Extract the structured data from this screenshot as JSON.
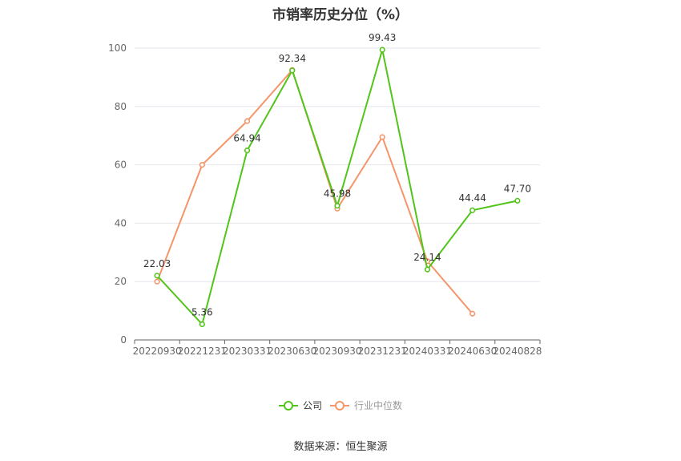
{
  "title": "市销率历史分位（%）",
  "source": "数据来源：恒生聚源",
  "colors": {
    "company": "#52c41a",
    "industry": "#f4956a",
    "grid": "#e6e6ee",
    "axis": "#666666"
  },
  "chart_data": {
    "type": "line",
    "title": "市销率历史分位（%）",
    "categories": [
      "20220930",
      "20221231",
      "20230331",
      "20230630",
      "20230930",
      "20231231",
      "20240331",
      "20240630",
      "20240828"
    ],
    "ylim": [
      0,
      100
    ],
    "yticks": [
      0,
      20,
      40,
      60,
      80,
      100
    ],
    "grid": true,
    "legend_position": "bottom",
    "series": [
      {
        "name": "公司",
        "values": [
          22.03,
          5.36,
          64.94,
          92.34,
          45.98,
          99.43,
          24.14,
          44.44,
          47.7
        ],
        "labels": [
          "22.03",
          "5.36",
          "64.94",
          "92.34",
          "45.98",
          "99.43",
          "24.14",
          "44.44",
          "47.70"
        ]
      },
      {
        "name": "行业中位数",
        "values": [
          20,
          60,
          75,
          92.5,
          45,
          69.5,
          27,
          9,
          null
        ]
      }
    ]
  }
}
